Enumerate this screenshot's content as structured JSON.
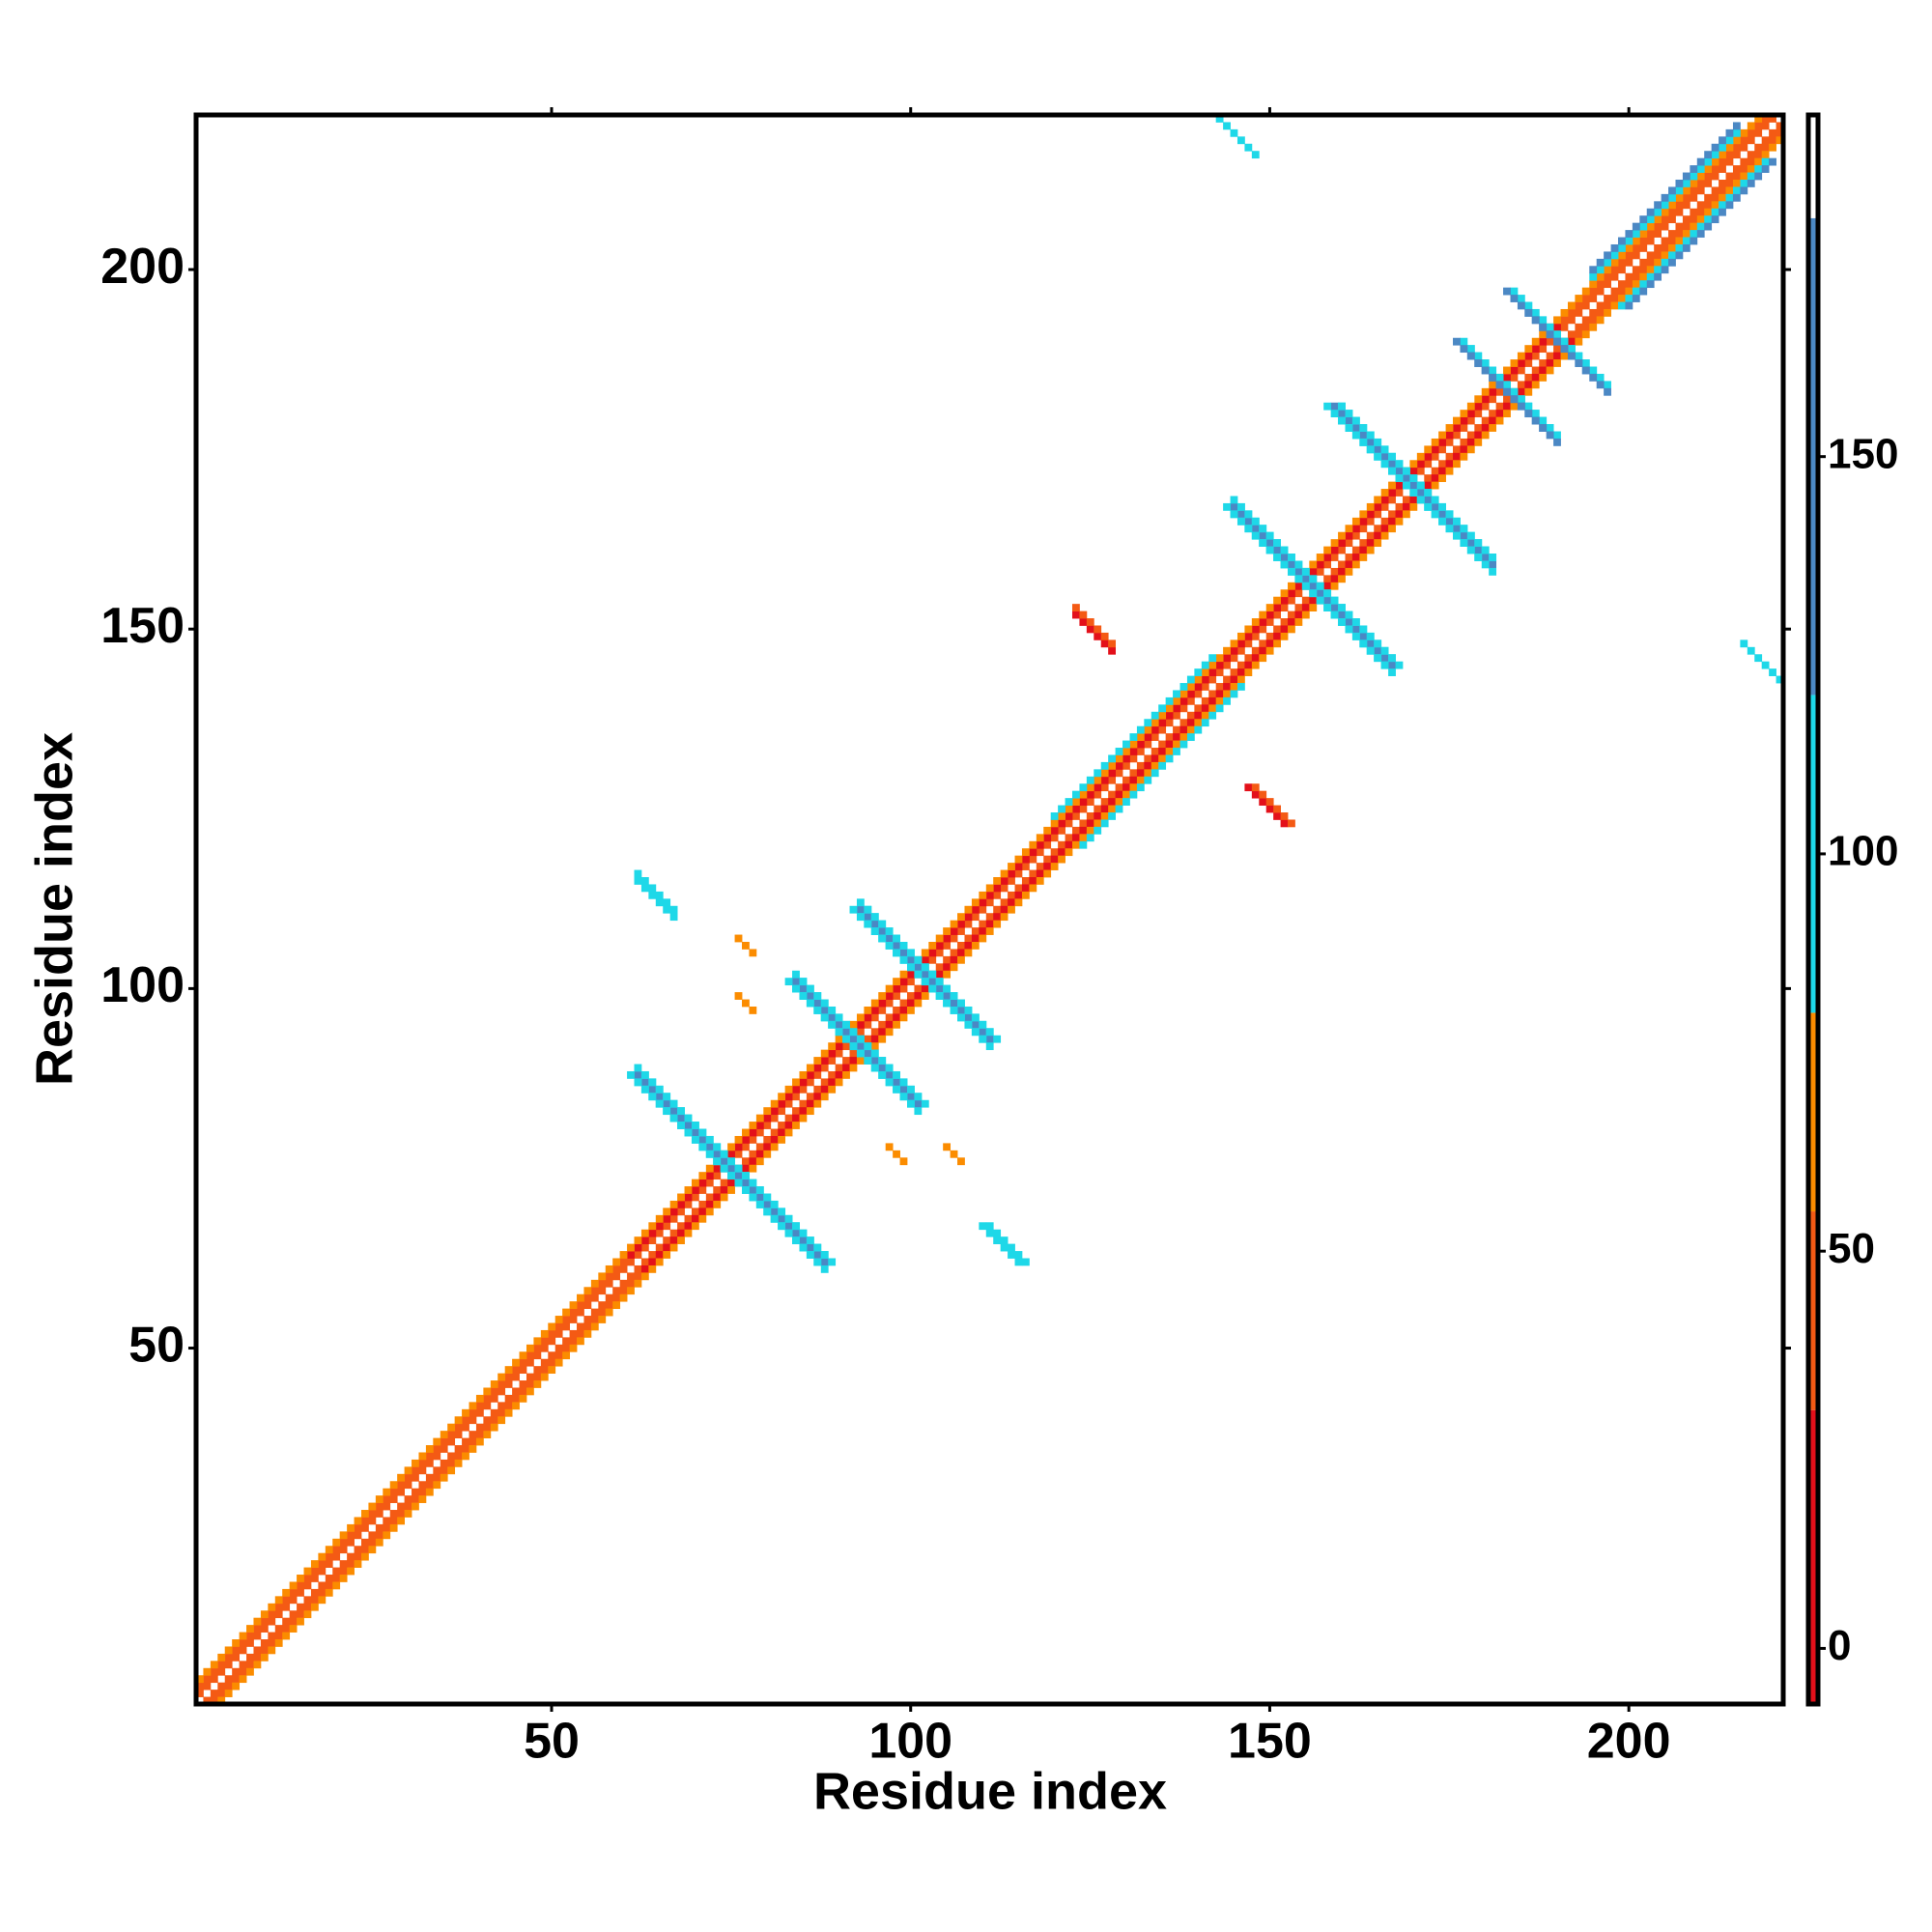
{
  "chart_data": {
    "type": "heatmap",
    "x_label": "Residue index",
    "y_label": "Residue index",
    "xlim": [
      0.5,
      221.5
    ],
    "ylim": [
      0.5,
      221.5
    ],
    "xticks": [
      50,
      100,
      150,
      200
    ],
    "yticks": [
      50,
      100,
      150,
      200
    ],
    "symmetric": true,
    "colorbar": {
      "lim": [
        -7,
        193
      ],
      "ticks": [
        0,
        50,
        100,
        150
      ],
      "bands": [
        {
          "from": -7,
          "to": 30,
          "color": "#e3101a"
        },
        {
          "from": 30,
          "to": 55,
          "color": "#f45a14"
        },
        {
          "from": 55,
          "to": 80,
          "color": "#fb8c00"
        },
        {
          "from": 80,
          "to": 120,
          "color": "#1ed8e8"
        },
        {
          "from": 120,
          "to": 180,
          "color": "#4b88c4"
        }
      ]
    },
    "stripes": [
      {
        "x": [
          1,
          220
        ],
        "slope": 1,
        "intercept": 1,
        "value": 40
      },
      {
        "x": [
          1,
          60
        ],
        "slope": 1,
        "intercept": 2,
        "value": 45
      },
      {
        "x": [
          61,
          190
        ],
        "slope": 1,
        "intercept": 2,
        "value": 15
      },
      {
        "x": [
          191,
          219
        ],
        "slope": 1,
        "intercept": 2,
        "value": 45
      },
      {
        "x": [
          1,
          218
        ],
        "slope": 1,
        "intercept": 3,
        "value": 65
      },
      {
        "x": [
          120,
          142
        ],
        "slope": 1,
        "intercept": 4,
        "value": 95
      },
      {
        "x": [
          195,
          215
        ],
        "slope": 1,
        "intercept": 4,
        "value": 95
      },
      {
        "x": [
          195,
          215
        ],
        "slope": 1,
        "intercept": 5,
        "value": 130
      },
      {
        "x": [
          62,
          88
        ],
        "slope": -1,
        "intercept": 150,
        "value": 150
      },
      {
        "x": [
          62,
          88
        ],
        "slope": -1,
        "intercept": 149,
        "value": 95
      },
      {
        "x": [
          62,
          88
        ],
        "slope": -1,
        "intercept": 151,
        "value": 95
      },
      {
        "x": [
          84,
          101
        ],
        "slope": -1,
        "intercept": 185,
        "value": 150
      },
      {
        "x": [
          84,
          101
        ],
        "slope": -1,
        "intercept": 184,
        "value": 95
      },
      {
        "x": [
          84,
          101
        ],
        "slope": -1,
        "intercept": 186,
        "value": 95
      },
      {
        "x": [
          93,
          111
        ],
        "slope": -1,
        "intercept": 204,
        "value": 150
      },
      {
        "x": [
          93,
          111
        ],
        "slope": -1,
        "intercept": 203,
        "value": 95
      },
      {
        "x": [
          93,
          111
        ],
        "slope": -1,
        "intercept": 205,
        "value": 95
      },
      {
        "x": [
          145,
          167
        ],
        "slope": -1,
        "intercept": 312,
        "value": 150
      },
      {
        "x": [
          145,
          167
        ],
        "slope": -1,
        "intercept": 311,
        "value": 95
      },
      {
        "x": [
          145,
          167
        ],
        "slope": -1,
        "intercept": 313,
        "value": 95
      },
      {
        "x": [
          160,
          181
        ],
        "slope": -1,
        "intercept": 340,
        "value": 150
      },
      {
        "x": [
          160,
          181
        ],
        "slope": -1,
        "intercept": 339,
        "value": 95
      },
      {
        "x": [
          160,
          181
        ],
        "slope": -1,
        "intercept": 341,
        "value": 95
      },
      {
        "x": [
          178,
          190
        ],
        "slope": -1,
        "intercept": 367,
        "value": 95
      },
      {
        "x": [
          178,
          190
        ],
        "slope": -1,
        "intercept": 366,
        "value": 150
      },
      {
        "x": [
          186,
          197
        ],
        "slope": -1,
        "intercept": 381,
        "value": 95
      },
      {
        "x": [
          186,
          197
        ],
        "slope": -1,
        "intercept": 380,
        "value": 150
      },
      {
        "x": [
          62,
          67
        ],
        "slope": -1,
        "intercept": 177,
        "value": 95
      },
      {
        "x": [
          62,
          67
        ],
        "slope": -1,
        "intercept": 178,
        "value": 95
      },
      {
        "x": [
          143,
          148
        ],
        "slope": -1,
        "intercept": 364,
        "value": 95
      },
      {
        "x": [
          123,
          128
        ],
        "slope": -1,
        "intercept": 275,
        "value": 15
      },
      {
        "x": [
          123,
          128
        ],
        "slope": -1,
        "intercept": 276,
        "value": 40
      },
      {
        "x": [
          76,
          78
        ],
        "slope": -1,
        "intercept": 183,
        "value": 65
      },
      {
        "x": [
          97,
          99
        ],
        "slope": -1,
        "intercept": 175,
        "value": 65
      }
    ]
  }
}
